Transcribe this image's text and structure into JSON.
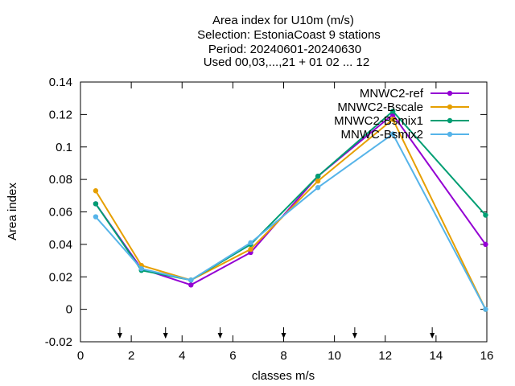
{
  "chart_data": {
    "type": "line",
    "title_lines": [
      "Area index  for U10m (m/s)",
      "Selection: EstoniaCoast      9 stations",
      "Period: 20240601-20240630",
      "Used 00,03,...,21 + 01 02 ... 12"
    ],
    "xlabel": "classes m/s",
    "ylabel": "Area index",
    "xlim": [
      0,
      16
    ],
    "ylim": [
      -0.02,
      0.14
    ],
    "xticks": [
      0,
      2,
      4,
      6,
      8,
      10,
      12,
      14,
      16
    ],
    "xtick_labels": [
      "0",
      "2",
      "4",
      "6",
      "8",
      "10",
      "12",
      "14",
      "16"
    ],
    "yticks": [
      -0.02,
      0,
      0.02,
      0.04,
      0.06,
      0.08,
      0.1,
      0.12,
      0.14
    ],
    "ytick_labels": [
      "-0.02",
      "0",
      "0.02",
      "0.04",
      "0.06",
      "0.08",
      "0.1",
      "0.12",
      "0.14"
    ],
    "grid": false,
    "legend_position": "top-right",
    "class_boundary_arrows": [
      1.55,
      3.35,
      5.5,
      8.0,
      10.8,
      13.85
    ],
    "x": [
      0.6,
      2.4,
      4.35,
      6.7,
      9.35,
      12.3,
      15.95
    ],
    "series": [
      {
        "name": "MNWC2-ref",
        "color": "#9400d3",
        "values": [
          0.065,
          0.025,
          0.015,
          0.035,
          0.082,
          0.12,
          0.04
        ]
      },
      {
        "name": "MNWC2-Bscale",
        "color": "#e69f00",
        "values": [
          0.073,
          0.027,
          0.018,
          0.037,
          0.079,
          0.117,
          0.0
        ]
      },
      {
        "name": "MNWC2-Bsmix1",
        "color": "#009e73",
        "values": [
          0.065,
          0.024,
          0.018,
          0.04,
          0.082,
          0.122,
          0.058
        ]
      },
      {
        "name": "MNWC-Bsmix2",
        "color": "#56b4e9",
        "values": [
          0.057,
          0.025,
          0.018,
          0.041,
          0.075,
          0.108,
          0.0
        ]
      }
    ]
  }
}
